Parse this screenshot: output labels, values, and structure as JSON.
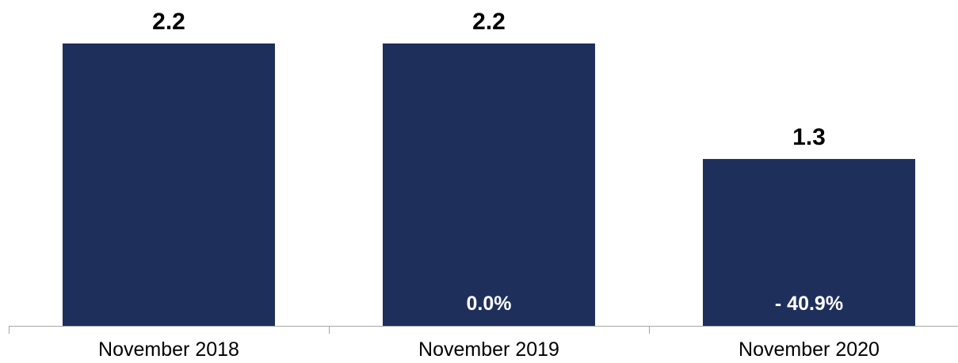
{
  "chart_data": {
    "type": "bar",
    "title": "",
    "xlabel": "",
    "ylabel": "",
    "categories": [
      "November 2018",
      "November 2019",
      "November 2020"
    ],
    "values": [
      2.2,
      2.2,
      1.3
    ],
    "value_labels": [
      "2.2",
      "2.2",
      "1.3"
    ],
    "change_labels": [
      "",
      "0.0%",
      "- 40.9%"
    ],
    "ylim": [
      0,
      2.2
    ],
    "grid": false,
    "legend": "none",
    "bar_color": "#1f2f5c",
    "axis_color": "#a6a6a6"
  }
}
